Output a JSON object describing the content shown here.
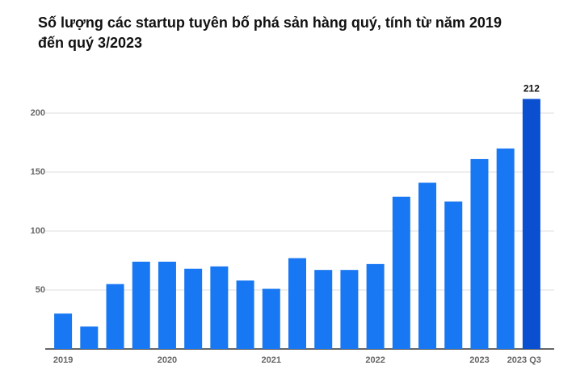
{
  "chart_data": {
    "type": "bar",
    "title": "Số lượng các startup tuyên bố phá sản hàng quý, tính từ năm 2019 đến quý 3/2023",
    "categories": [
      "2019",
      null,
      null,
      null,
      "2020",
      null,
      null,
      null,
      "2021",
      null,
      null,
      null,
      "2022",
      null,
      null,
      null,
      "2023",
      null,
      "2023 Q3"
    ],
    "values": [
      30,
      19,
      55,
      74,
      74,
      68,
      70,
      58,
      51,
      77,
      67,
      67,
      72,
      129,
      141,
      125,
      161,
      170,
      212
    ],
    "value_labels": [
      null,
      null,
      null,
      null,
      null,
      null,
      null,
      null,
      null,
      null,
      null,
      null,
      null,
      null,
      null,
      null,
      null,
      null,
      "212"
    ],
    "colors": [
      "#1877f2",
      "#1877f2",
      "#1877f2",
      "#1877f2",
      "#1877f2",
      "#1877f2",
      "#1877f2",
      "#1877f2",
      "#1877f2",
      "#1877f2",
      "#1877f2",
      "#1877f2",
      "#1877f2",
      "#1877f2",
      "#1877f2",
      "#1877f2",
      "#1877f2",
      "#1877f2",
      "#0a4fd0"
    ],
    "ylim": [
      0,
      225
    ],
    "yticks": [
      50,
      100,
      150,
      200
    ],
    "grid": true
  }
}
